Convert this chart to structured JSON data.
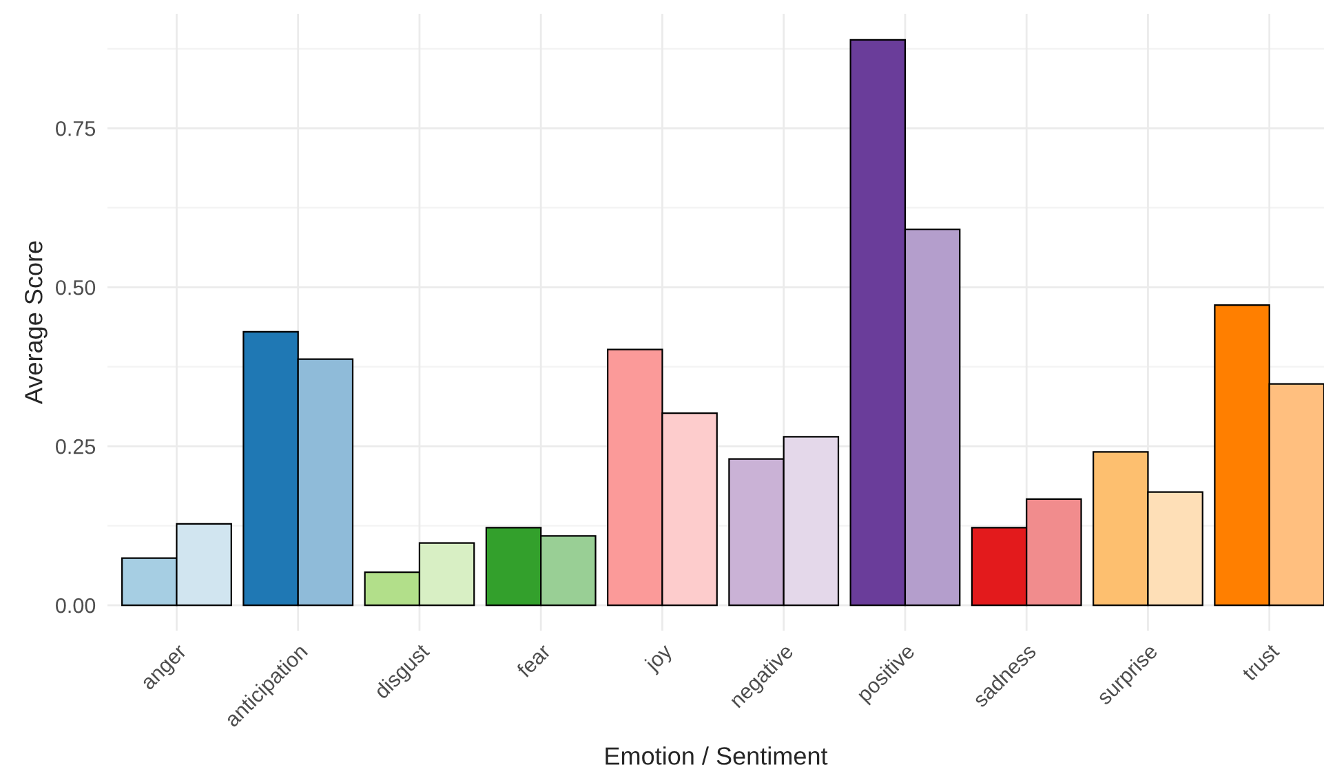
{
  "chart_data": {
    "type": "bar",
    "xlabel": "Emotion / Sentiment",
    "ylabel": "Average Score",
    "categories": [
      "anger",
      "anticipation",
      "disgust",
      "fear",
      "joy",
      "negative",
      "positive",
      "sadness",
      "surprise",
      "trust"
    ],
    "series": [
      {
        "colors": [
          "#a6cee3",
          "#1f78b4",
          "#b2df8a",
          "#33a02c",
          "#fb9a99",
          "#cab2d6",
          "#6a3d9a",
          "#e31a1c",
          "#fdbf6f",
          "#ff7f00"
        ],
        "values": [
          0.074,
          0.43,
          0.052,
          0.122,
          0.402,
          0.23,
          0.889,
          0.122,
          0.241,
          0.472
        ]
      },
      {
        "colors": [
          "#d1e5f0",
          "#8fbbd9",
          "#d8efc4",
          "#99cf95",
          "#fdcccc",
          "#e4d8ea",
          "#b49ecc",
          "#f18c8d",
          "#fedfb7",
          "#ffbf7f"
        ],
        "values": [
          0.128,
          0.387,
          0.098,
          0.109,
          0.302,
          0.265,
          0.591,
          0.167,
          0.178,
          0.348
        ]
      }
    ],
    "ylim": [
      -0.04,
      0.93
    ],
    "yticks": [
      {
        "value": 0,
        "label": "0.00"
      },
      {
        "value": 0.25,
        "label": "0.25"
      },
      {
        "value": 0.5,
        "label": "0.50"
      },
      {
        "value": 0.75,
        "label": "0.75"
      }
    ],
    "grid": true
  }
}
